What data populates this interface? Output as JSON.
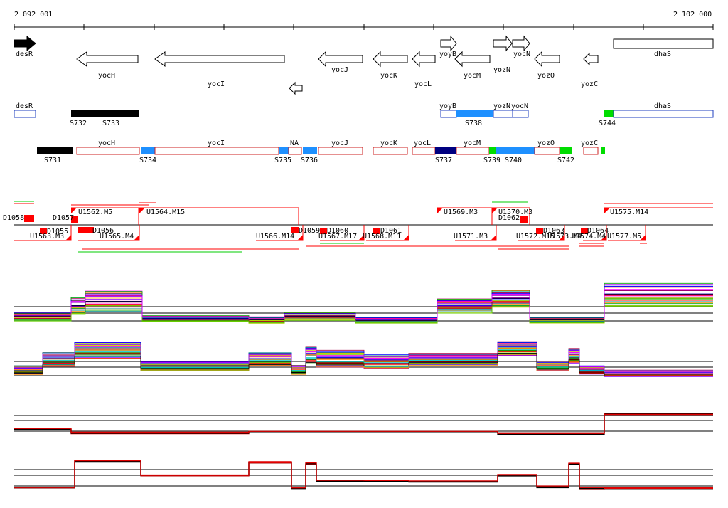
{
  "ruler": {
    "start_label": "2 092 001",
    "end_label": "2 102 000"
  },
  "genes_top": [
    {
      "label": "desR"
    },
    {
      "label": "yocH"
    },
    {
      "label": "yocI"
    },
    {
      "label": "yocJ"
    },
    {
      "label": "yocK"
    },
    {
      "label": "yocL"
    },
    {
      "label": "yoyB"
    },
    {
      "label": "yocM"
    },
    {
      "label": "yozN"
    },
    {
      "label": "yocN"
    },
    {
      "label": "yozO"
    },
    {
      "label": "yozC"
    },
    {
      "label": "dhaS"
    }
  ],
  "segments_row1": [
    {
      "label": "desR"
    },
    {
      "label": "yoyB"
    },
    {
      "label": "yozN"
    },
    {
      "label": "yocN"
    },
    {
      "label": "dhaS"
    },
    {
      "label": "S732"
    },
    {
      "label": "S733"
    },
    {
      "label": "S738"
    },
    {
      "label": "S744"
    }
  ],
  "segments_row2": [
    {
      "label": "yocH"
    },
    {
      "label": "yocI"
    },
    {
      "label": "NA"
    },
    {
      "label": "yocJ"
    },
    {
      "label": "yocK"
    },
    {
      "label": "yocL"
    },
    {
      "label": "yocM"
    },
    {
      "label": "yozO"
    },
    {
      "label": "yozC"
    },
    {
      "label": "S731"
    },
    {
      "label": "S734"
    },
    {
      "label": "S735"
    },
    {
      "label": "S736"
    },
    {
      "label": "S737"
    },
    {
      "label": "S739"
    },
    {
      "label": "S740"
    },
    {
      "label": "S742"
    }
  ],
  "transcripts_upper": [
    {
      "label": "U1562.M5"
    },
    {
      "label": "U1564.M15"
    },
    {
      "label": "U1569.M3"
    },
    {
      "label": "U1570.M3"
    },
    {
      "label": "U1575.M14"
    },
    {
      "label": "D1057"
    },
    {
      "label": "D1062"
    },
    {
      "label": "D1058"
    }
  ],
  "transcripts_lower": [
    {
      "label": "U1563.M3"
    },
    {
      "label": "D1055"
    },
    {
      "label": "U1565.M4"
    },
    {
      "label": "D1056"
    },
    {
      "label": "U1566.M14"
    },
    {
      "label": "D1059"
    },
    {
      "label": "D1060"
    },
    {
      "label": "U1567.M17"
    },
    {
      "label": "U1568.M11"
    },
    {
      "label": "D1061"
    },
    {
      "label": "U1571.M3"
    },
    {
      "label": "U1572.M15"
    },
    {
      "label": "D1063"
    },
    {
      "label": "U1573.M4"
    },
    {
      "label": "U1574.M4"
    },
    {
      "label": "D1064"
    },
    {
      "label": "U1577.M5"
    }
  ],
  "colors": {
    "gene_outline": "#000000",
    "segment_blue": "#1f3fbf",
    "segment_red": "#cc2020",
    "fill_black": "#000000",
    "fill_lightblue": "#1e90ff",
    "fill_navy": "#000080",
    "fill_green": "#00dd00",
    "marker_red": "#ff0000",
    "track_red": "#e00000",
    "track_black": "#000000"
  }
}
